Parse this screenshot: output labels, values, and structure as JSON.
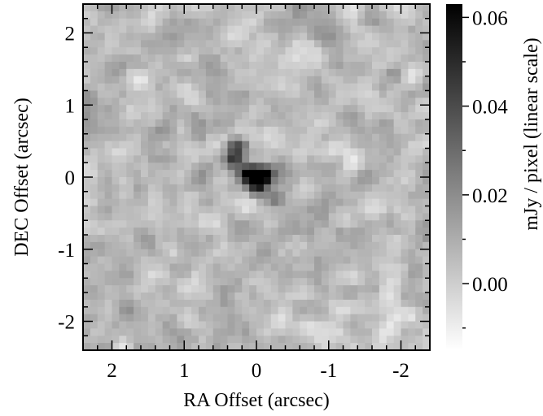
{
  "chart_data": {
    "type": "heatmap",
    "title": "",
    "xlabel": "RA Offset (arcsec)",
    "ylabel": "DEC Offset (arcsec)",
    "xlim": [
      2.4,
      -2.4
    ],
    "ylim": [
      -2.4,
      2.4
    ],
    "x_ticks": [
      2,
      1,
      0,
      -1,
      -2
    ],
    "x_tick_labels": [
      "2",
      "1",
      "0",
      "-1",
      "-2"
    ],
    "y_ticks": [
      2,
      1,
      0,
      -1,
      -2
    ],
    "y_tick_labels": [
      "2",
      "1",
      "0",
      "-1",
      "-2"
    ],
    "grid": false,
    "colormap": "grayscale (white = low, black = high)",
    "pixel_scale_arcsec": 0.1,
    "colorbar": {
      "label": "mJy / pixel (linear scale)",
      "range": [
        -0.015,
        0.063
      ],
      "ticks": [
        0.0,
        0.02,
        0.04,
        0.06
      ],
      "tick_labels": [
        "0.00",
        "0.02",
        "0.04",
        "0.06"
      ]
    },
    "features": [
      {
        "ra": 0.0,
        "dec": 0.0,
        "peak": 0.062
      },
      {
        "ra": 0.12,
        "dec": 0.05,
        "peak": 0.045
      },
      {
        "ra": -0.12,
        "dec": 0.02,
        "peak": 0.043
      },
      {
        "ra": 0.0,
        "dec": -0.18,
        "peak": 0.035
      },
      {
        "ra": 0.25,
        "dec": 0.45,
        "peak": 0.035
      },
      {
        "ra": 0.32,
        "dec": 0.25,
        "peak": 0.028
      },
      {
        "ra": -0.25,
        "dec": -0.3,
        "peak": 0.02
      }
    ],
    "background_rms": 0.008
  }
}
